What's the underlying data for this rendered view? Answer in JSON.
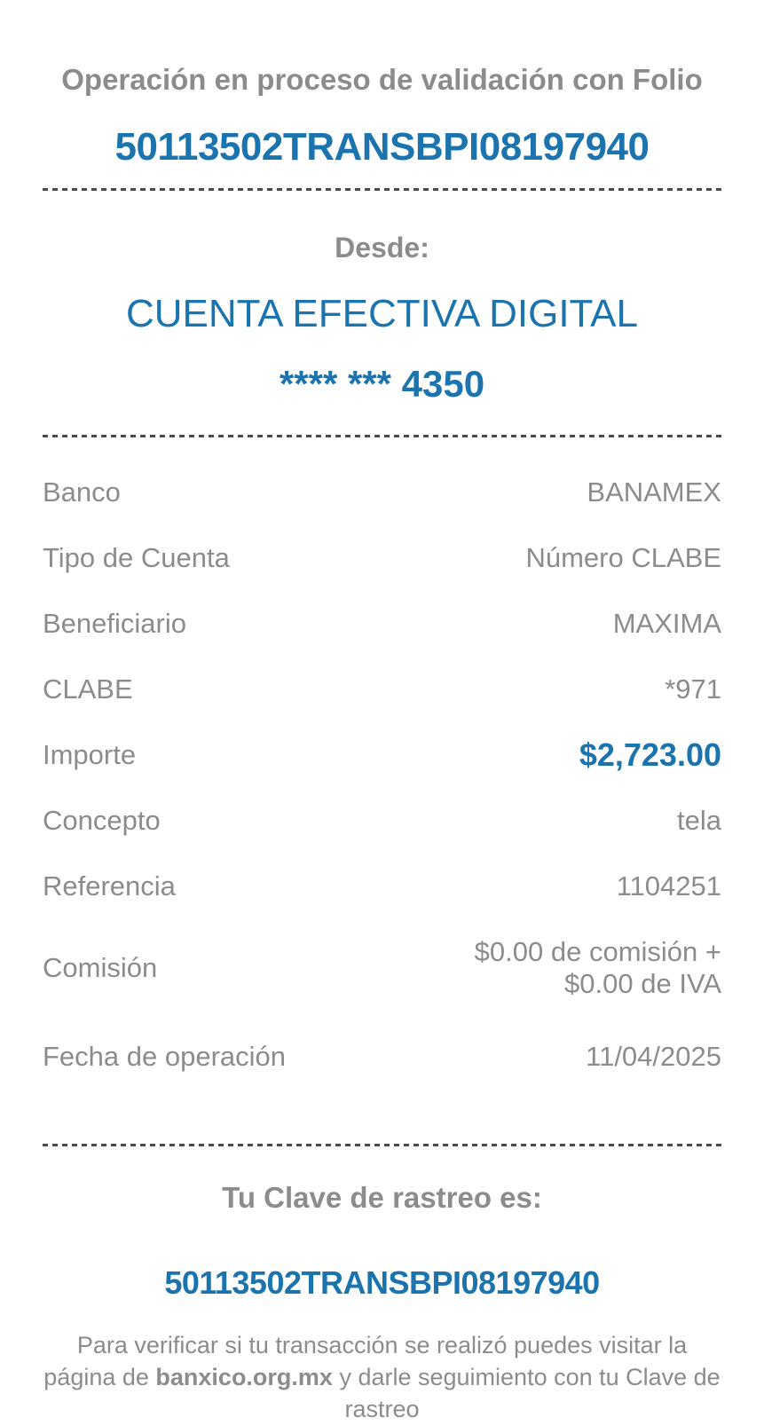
{
  "status": {
    "title": "Operación en proceso de validación con Folio",
    "folio": "50113502TRANSBPI08197940"
  },
  "source": {
    "heading": "Desde:",
    "account_name": "CUENTA EFECTIVA DIGITAL",
    "account_mask": "**** *** 4350"
  },
  "details": {
    "rows": [
      {
        "label": "Banco",
        "value": "BANAMEX"
      },
      {
        "label": "Tipo de Cuenta",
        "value": "Número CLABE"
      },
      {
        "label": "Beneficiario",
        "value": "MAXIMA"
      },
      {
        "label": "CLABE",
        "value": "*971"
      },
      {
        "label": "Importe",
        "value": "$2,723.00"
      },
      {
        "label": "Concepto",
        "value": "tela"
      },
      {
        "label": "Referencia",
        "value": "1104251"
      },
      {
        "label": "Comisión",
        "value": "$0.00 de comisión +\n$0.00 de IVA"
      },
      {
        "label": "Fecha de operación",
        "value": "11/04/2025"
      }
    ]
  },
  "tracking": {
    "heading": "Tu Clave de rastreo es:",
    "key": "50113502TRANSBPI08197940"
  },
  "footer": {
    "text_before": "Para verificar si tu transacción se realizó puedes visitar la página de ",
    "site": "banxico.org.mx",
    "text_after": " y darle seguimiento con tu Clave de rastreo"
  },
  "colors": {
    "accent_blue": "#1b74ae",
    "text_gray": "#8c8c8c",
    "divider_dark": "#4a4a4a"
  }
}
